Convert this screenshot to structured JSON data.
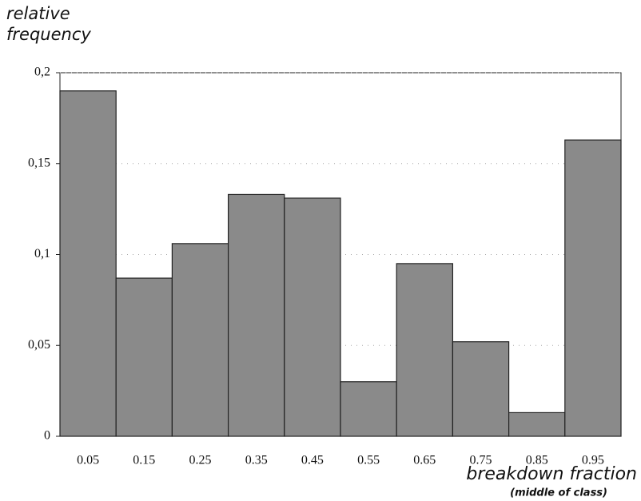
{
  "chart_data": {
    "type": "bar",
    "y_label": "relative frequency",
    "x_label": "breakdown fraction",
    "x_sublabel": "(middle of class)",
    "categories": [
      "0.05",
      "0.15",
      "0.25",
      "0.35",
      "0.45",
      "0.55",
      "0.65",
      "0.75",
      "0.85",
      "0.95"
    ],
    "values": [
      0.19,
      0.087,
      0.106,
      0.133,
      0.131,
      0.03,
      0.095,
      0.052,
      0.013,
      0.163
    ],
    "color": "#8a8a8a",
    "ylim": [
      0,
      0.2
    ],
    "yticks": [
      0,
      {
        "value": 0.05,
        "label": "0,05"
      },
      {
        "value": 0.1,
        "label": "0,1"
      },
      {
        "value": 0.15,
        "label": "0,15"
      },
      {
        "value": 0.2,
        "label": "0,2"
      }
    ],
    "grid": true
  }
}
